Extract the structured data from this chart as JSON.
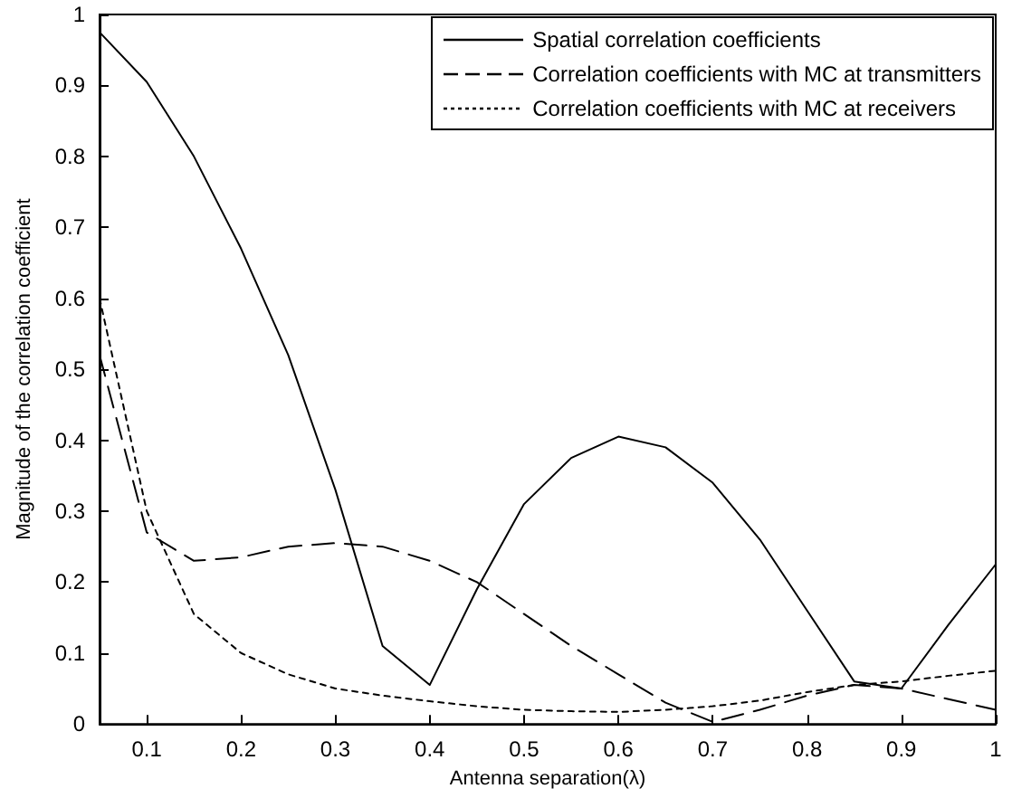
{
  "chart_data": {
    "type": "line",
    "xlabel": "Antenna separation(λ)",
    "ylabel": "Magnitude of the correlation coefficient",
    "x": [
      0.05,
      0.1,
      0.15,
      0.2,
      0.25,
      0.3,
      0.35,
      0.4,
      0.45,
      0.5,
      0.55,
      0.6,
      0.65,
      0.7,
      0.75,
      0.8,
      0.85,
      0.9,
      0.95,
      1
    ],
    "series": [
      {
        "name": "Spatial correlation coefficients",
        "color": "#000000",
        "line_style": "solid",
        "values": [
          0.975,
          0.905,
          0.8,
          0.67,
          0.52,
          0.33,
          0.11,
          0.055,
          0.19,
          0.31,
          0.375,
          0.405,
          0.39,
          0.34,
          0.26,
          0.16,
          0.06,
          0.05,
          0.14,
          0.225
        ]
      },
      {
        "name": "Correlation coefficients with MC at transmitters",
        "color": "#000000",
        "line_style": "dashed",
        "values": [
          0.52,
          0.27,
          0.23,
          0.235,
          0.25,
          0.255,
          0.25,
          0.23,
          0.2,
          0.155,
          0.11,
          0.07,
          0.03,
          0.003,
          0.02,
          0.04,
          0.055,
          0.05,
          0.035,
          0.02
        ]
      },
      {
        "name": "Correlation coefficients with MC at receivers",
        "color": "#000000",
        "line_style": "dotted",
        "values": [
          0.6,
          0.3,
          0.155,
          0.1,
          0.07,
          0.05,
          0.04,
          0.032,
          0.025,
          0.02,
          0.018,
          0.017,
          0.02,
          0.025,
          0.033,
          0.045,
          0.055,
          0.06,
          0.068,
          0.075
        ]
      }
    ],
    "xlim": [
      0.05,
      1
    ],
    "xticks": [
      0.1,
      0.2,
      0.3,
      0.4,
      0.5,
      0.6,
      0.7,
      0.8,
      0.9,
      1
    ],
    "ylim": [
      0,
      1
    ],
    "yticks": [
      0,
      0.1,
      0.2,
      0.3,
      0.4,
      0.5,
      0.6,
      0.7,
      0.8,
      0.9,
      1
    ],
    "grid": false,
    "legend": "top right",
    "marker": "none"
  }
}
